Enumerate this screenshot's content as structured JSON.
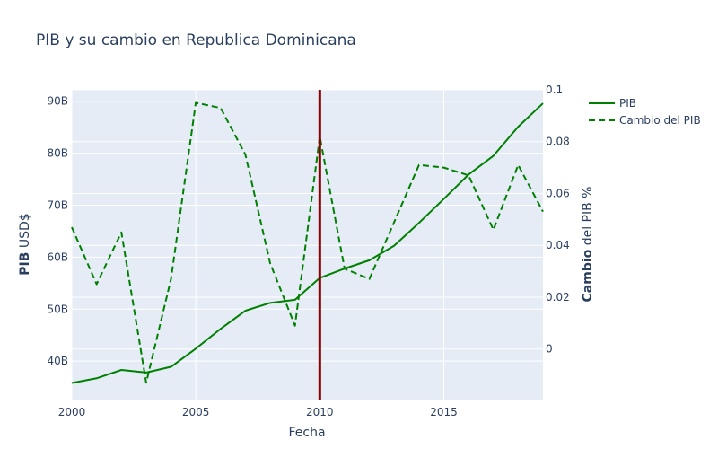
{
  "chart_data": {
    "type": "line",
    "title": "PIB y su cambio en Republica Dominicana",
    "xlabel": "Fecha",
    "ylabel_bold": "PIB",
    "ylabel_rest": " USD$",
    "y2label_bold": "Cambio",
    "y2label_rest": " del PIB %",
    "x": [
      2000,
      2001,
      2002,
      2003,
      2004,
      2005,
      2006,
      2007,
      2008,
      2009,
      2010,
      2011,
      2012,
      2013,
      2014,
      2015,
      2016,
      2017,
      2018,
      2019
    ],
    "xlim": [
      2000,
      2019
    ],
    "ylim": [
      32.6,
      92.2
    ],
    "y2lim": [
      -0.0195,
      0.1
    ],
    "x_ticks": [
      2000,
      2005,
      2010,
      2015
    ],
    "y_ticks": [
      40,
      50,
      60,
      70,
      80,
      90
    ],
    "y_tick_labels": [
      "40B",
      "50B",
      "60B",
      "70B",
      "80B",
      "90B"
    ],
    "y2_ticks": [
      0,
      0.02,
      0.04,
      0.06,
      0.08,
      0.1
    ],
    "y2_tick_labels": [
      "0",
      "0.02",
      "0.04",
      "0.06",
      "0.08",
      "0.1"
    ],
    "series": [
      {
        "name": "PIB",
        "axis": "left",
        "dash": "solid",
        "color": "#008000",
        "values": [
          35.8,
          36.7,
          38.3,
          37.8,
          38.9,
          42.4,
          46.2,
          49.7,
          51.2,
          51.8,
          56.0,
          57.8,
          59.4,
          62.2,
          66.6,
          71.2,
          75.9,
          79.5,
          85.1,
          89.6
        ]
      },
      {
        "name": "Cambio del PIB",
        "axis": "right",
        "dash": "dashed",
        "color": "#008000",
        "values": [
          0.047,
          0.025,
          0.045,
          -0.013,
          0.027,
          0.095,
          0.093,
          0.075,
          0.033,
          0.009,
          0.082,
          0.031,
          0.027,
          0.049,
          0.071,
          0.07,
          0.067,
          0.046,
          0.071,
          0.053
        ]
      }
    ],
    "vertical_line": {
      "x": 2010,
      "color": "#8b0000"
    },
    "grid": true,
    "legend_position": "top-right",
    "colors": {
      "plot_bg": "#e5ecf6",
      "grid": "#ffffff",
      "text": "#2a3f5f"
    }
  }
}
